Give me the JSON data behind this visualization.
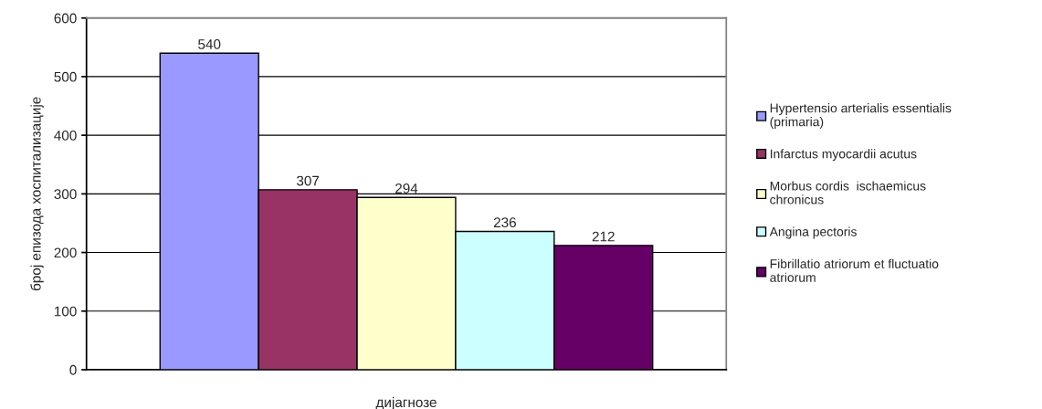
{
  "chart_data": {
    "type": "bar",
    "xlabel": "дијагнозе",
    "ylabel": "број епизода хоспитализације",
    "categories": [
      null
    ],
    "series": [
      {
        "name": "Hypertensio arterialis essentialis (primaria)",
        "color": "#9999ff",
        "values": [
          540
        ]
      },
      {
        "name": "Infarctus myocardii acutus",
        "color": "#993366",
        "values": [
          307
        ]
      },
      {
        "name": "Morbus cordis  ischaemicus chronicus",
        "color": "#ffffcc",
        "values": [
          294
        ]
      },
      {
        "name": "Angina pectoris",
        "color": "#ccffff",
        "values": [
          236
        ]
      },
      {
        "name": "Fibrillatio atriorum et fluctuatio atriorum",
        "color": "#660066",
        "values": [
          212
        ]
      }
    ],
    "ylim": [
      0,
      600
    ],
    "yticks": [
      0,
      100,
      200,
      300,
      400,
      500,
      600
    ],
    "grid": "y",
    "legend": "right",
    "data_labels": true
  }
}
